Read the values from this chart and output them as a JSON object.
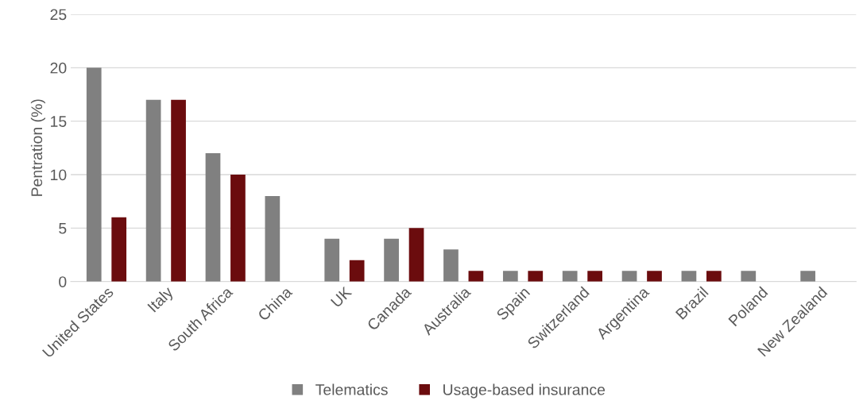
{
  "chart_data": {
    "type": "bar",
    "ylabel": "Pentration (%)",
    "categories": [
      "United States",
      "Italy",
      "South Africa",
      "China",
      "UK",
      "Canada",
      "Australia",
      "Spain",
      "Switzerland",
      "Argentina",
      "Brazil",
      "Poland",
      "New Zealand"
    ],
    "series": [
      {
        "name": "Telematics",
        "color": "#808080",
        "values": [
          20,
          17,
          12,
          8,
          4,
          4,
          3,
          1,
          1,
          1,
          1,
          1,
          1
        ]
      },
      {
        "name": "Usage-based insurance",
        "color": "#6b0c0e",
        "values": [
          6,
          17,
          10,
          null,
          2,
          5,
          1,
          1,
          1,
          1,
          1,
          null,
          null
        ]
      }
    ],
    "ylim": [
      0,
      25
    ],
    "yticks": [
      0,
      5,
      10,
      15,
      20,
      25
    ],
    "grid": "y",
    "legend": "bottom"
  }
}
